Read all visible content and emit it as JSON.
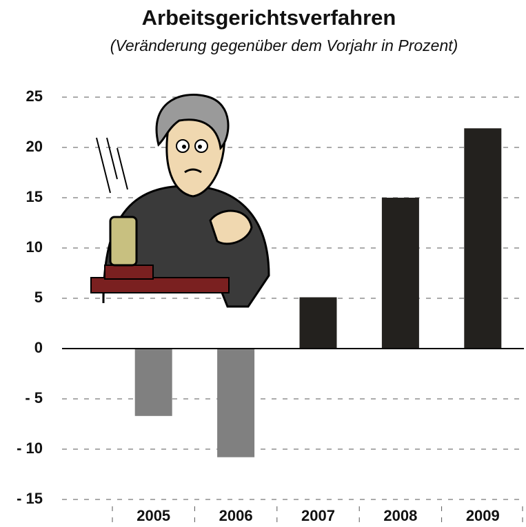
{
  "chart_data": {
    "type": "bar",
    "title": "Arbeitsgerichtsverfahren",
    "subtitle": "(Veränderung gegenüber dem Vorjahr in Prozent)",
    "categories": [
      "2005",
      "2006",
      "2007",
      "2008",
      "2009"
    ],
    "values": [
      -6.7,
      -10.8,
      5.1,
      15,
      21.9
    ],
    "colors": [
      "#808080",
      "#808080",
      "#23211e",
      "#23211e",
      "#23211e"
    ],
    "ylim": [
      -15,
      25
    ],
    "yticks": [
      {
        "value": -15,
        "label": "- 15"
      },
      {
        "value": -10,
        "label": "- 10"
      },
      {
        "value": -5,
        "label": "- 5"
      },
      0,
      5,
      10,
      15,
      20,
      25
    ],
    "grid": true
  }
}
